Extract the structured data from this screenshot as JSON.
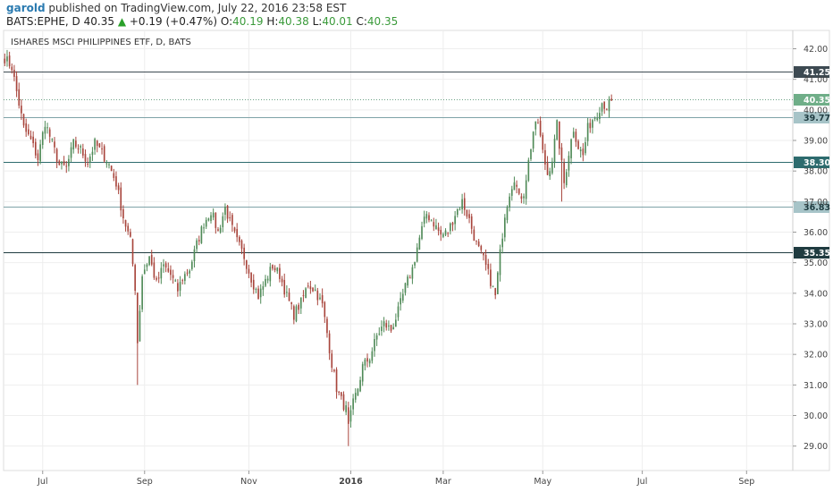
{
  "header": {
    "user": "garold",
    "published_text": "published on TradingView.com, July 22, 2016 23:58 EST",
    "symbol_line": "BATS:EPHE, D",
    "last": "40.35",
    "change": "+0.19 (+0.47%)",
    "o_label": "O:",
    "o": "40.19",
    "h_label": "H:",
    "h": "40.38",
    "l_label": "L:",
    "l": "40.01",
    "c_label": "C:",
    "c": "40.35"
  },
  "chart_data": {
    "type": "candlestick",
    "title": "ISHARES MSCI PHILIPPINES ETF, D, BATS",
    "ylim": [
      28.2,
      42.6
    ],
    "y_ticks": [
      "29.00",
      "30.00",
      "31.00",
      "32.00",
      "33.00",
      "34.00",
      "35.00",
      "36.00",
      "37.00",
      "38.00",
      "39.00",
      "40.00",
      "41.00",
      "42.00"
    ],
    "x_labels": [
      {
        "label": "Jul",
        "index": 16,
        "bold": false
      },
      {
        "label": "Sep",
        "index": 59,
        "bold": false
      },
      {
        "label": "Nov",
        "index": 103,
        "bold": false
      },
      {
        "label": "2016",
        "index": 146,
        "bold": true
      },
      {
        "label": "Mar",
        "index": 185,
        "bold": false
      },
      {
        "label": "May",
        "index": 227,
        "bold": false
      },
      {
        "label": "Jul",
        "index": 269,
        "bold": false
      },
      {
        "label": "Sep",
        "index": 313,
        "bold": false
      }
    ],
    "total_slots": 333,
    "levels": [
      {
        "value": 41.25,
        "label": "41.25",
        "color": "#3d4a52",
        "dotted": false
      },
      {
        "value": 40.35,
        "label": "40.35",
        "color": "#6aa084",
        "dotted": true
      },
      {
        "value": 39.77,
        "label": "39.77",
        "color": "#7fa3a8",
        "dotted": false
      },
      {
        "value": 38.3,
        "label": "38.30",
        "color": "#2d6b6e",
        "dotted": false
      },
      {
        "value": 36.83,
        "label": "36.83",
        "color": "#7fa3a8",
        "dotted": false
      },
      {
        "value": 35.35,
        "label": "35.35",
        "color": "#1f3b40",
        "dotted": false
      }
    ],
    "colors": {
      "up": "#4f8a57",
      "down": "#a8453c",
      "grid": "#eeeeee",
      "axis": "#888888"
    },
    "anchors": [
      [
        0,
        41.7
      ],
      [
        3,
        41.4
      ],
      [
        5,
        40.6
      ],
      [
        8,
        39.4
      ],
      [
        11,
        39.0
      ],
      [
        14,
        38.4
      ],
      [
        17,
        39.6
      ],
      [
        20,
        38.9
      ],
      [
        23,
        38.2
      ],
      [
        26,
        38.1
      ],
      [
        29,
        38.9
      ],
      [
        32,
        38.7
      ],
      [
        35,
        38.3
      ],
      [
        38,
        38.9
      ],
      [
        41,
        38.6
      ],
      [
        44,
        38.2
      ],
      [
        47,
        37.6
      ],
      [
        50,
        36.5
      ],
      [
        53,
        35.7
      ],
      [
        55,
        34.2
      ],
      [
        56,
        32.4
      ],
      [
        58,
        34.6
      ],
      [
        61,
        35.2
      ],
      [
        64,
        34.3
      ],
      [
        67,
        34.9
      ],
      [
        70,
        34.6
      ],
      [
        73,
        34.1
      ],
      [
        75,
        34.5
      ],
      [
        78,
        34.8
      ],
      [
        81,
        35.6
      ],
      [
        84,
        36.3
      ],
      [
        87,
        36.7
      ],
      [
        90,
        36.0
      ],
      [
        93,
        36.8
      ],
      [
        96,
        36.1
      ],
      [
        98,
        35.7
      ],
      [
        101,
        35.2
      ],
      [
        104,
        34.5
      ],
      [
        107,
        33.9
      ],
      [
        110,
        34.4
      ],
      [
        113,
        34.9
      ],
      [
        116,
        34.6
      ],
      [
        119,
        33.9
      ],
      [
        122,
        33.3
      ],
      [
        125,
        33.7
      ],
      [
        128,
        34.3
      ],
      [
        131,
        34.1
      ],
      [
        134,
        33.6
      ],
      [
        136,
        32.7
      ],
      [
        138,
        31.7
      ],
      [
        140,
        30.9
      ],
      [
        142,
        30.5
      ],
      [
        144,
        30.2
      ],
      [
        145,
        29.6
      ],
      [
        147,
        30.4
      ],
      [
        149,
        30.9
      ],
      [
        151,
        31.6
      ],
      [
        154,
        31.9
      ],
      [
        157,
        32.6
      ],
      [
        160,
        33.0
      ],
      [
        163,
        32.8
      ],
      [
        166,
        33.4
      ],
      [
        169,
        34.2
      ],
      [
        172,
        34.8
      ],
      [
        174,
        35.5
      ],
      [
        176,
        36.1
      ],
      [
        178,
        36.6
      ],
      [
        181,
        36.3
      ],
      [
        184,
        35.9
      ],
      [
        187,
        36.0
      ],
      [
        190,
        36.6
      ],
      [
        193,
        37.0
      ],
      [
        196,
        36.4
      ],
      [
        199,
        35.6
      ],
      [
        202,
        35.1
      ],
      [
        205,
        34.4
      ],
      [
        207,
        33.9
      ],
      [
        209,
        35.3
      ],
      [
        211,
        36.6
      ],
      [
        213,
        37.3
      ],
      [
        215,
        37.8
      ],
      [
        217,
        37.1
      ],
      [
        219,
        37.3
      ],
      [
        221,
        38.3
      ],
      [
        223,
        39.3
      ],
      [
        225,
        39.6
      ],
      [
        227,
        38.6
      ],
      [
        229,
        37.9
      ],
      [
        231,
        38.4
      ],
      [
        233,
        39.5
      ],
      [
        235,
        38.2
      ],
      [
        236,
        37.6
      ],
      [
        238,
        38.6
      ],
      [
        240,
        39.4
      ],
      [
        242,
        38.8
      ],
      [
        244,
        38.5
      ],
      [
        246,
        39.4
      ],
      [
        248,
        39.7
      ],
      [
        250,
        39.9
      ],
      [
        252,
        40.25
      ],
      [
        254,
        40.1
      ],
      [
        256,
        40.3
      ]
    ],
    "gaps": [
      [
        208,
        209
      ],
      [
        210,
        211
      ]
    ]
  }
}
